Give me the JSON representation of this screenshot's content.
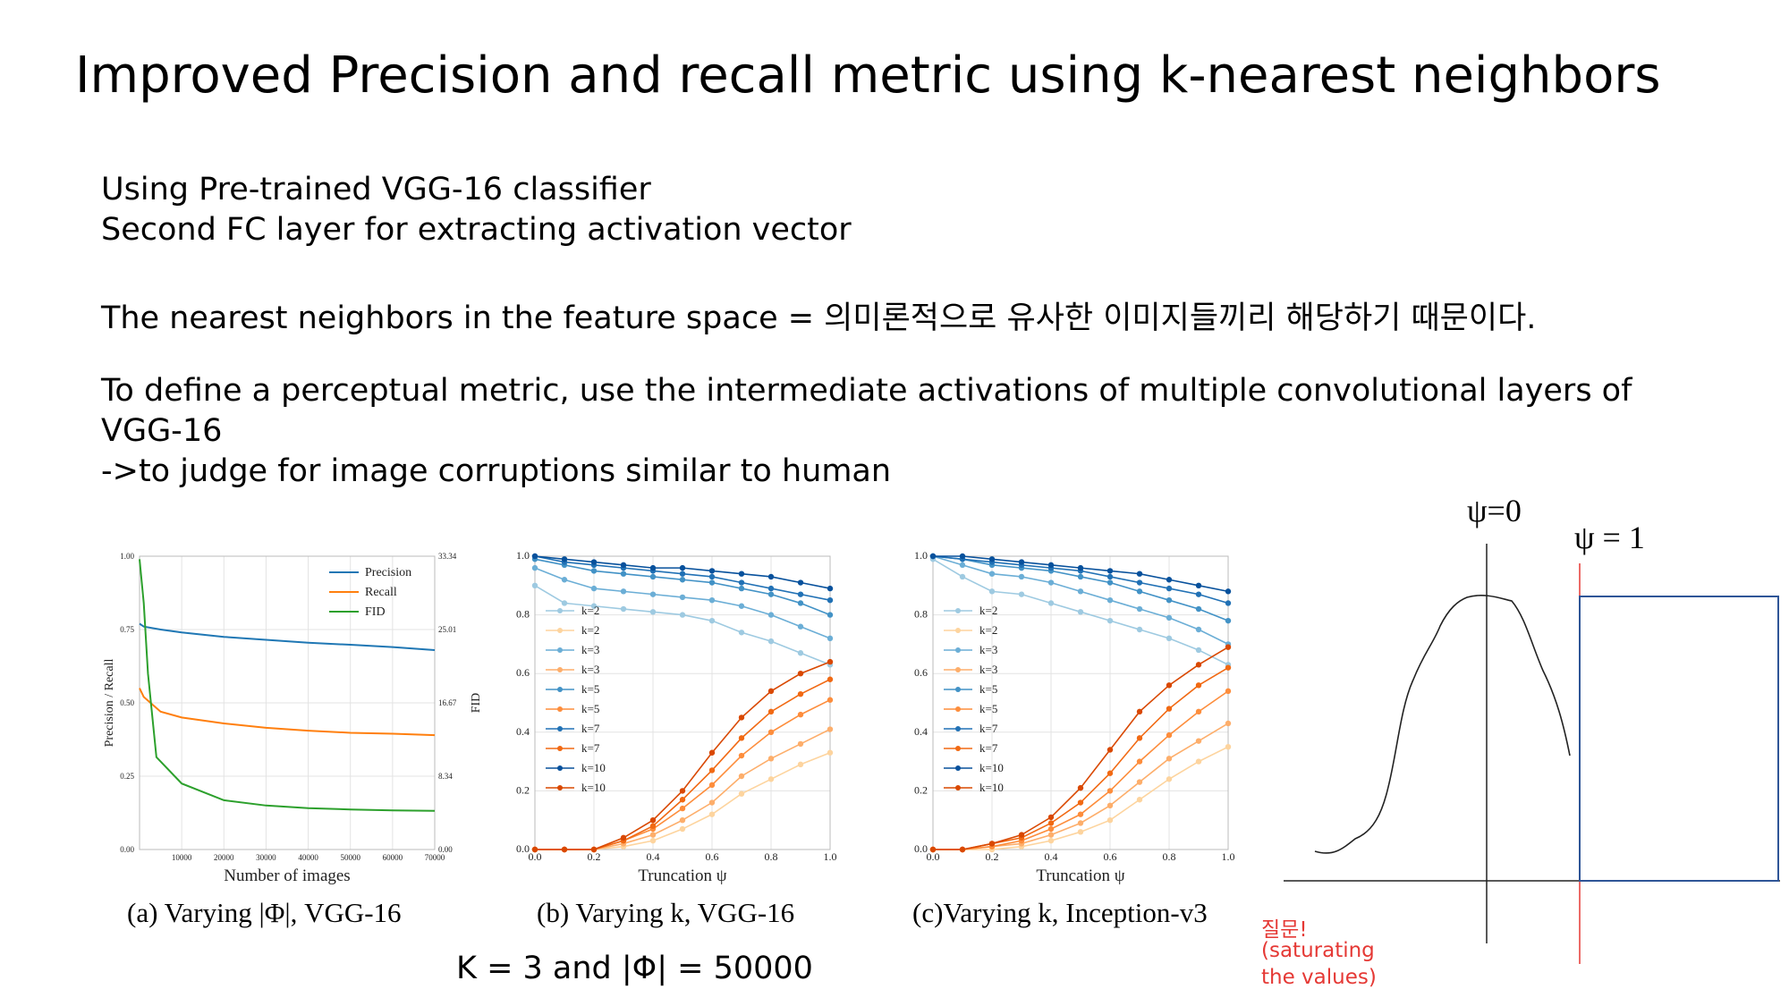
{
  "slide": {
    "title": "Improved Precision and recall metric using k-nearest neighbors",
    "lines": [
      "Using Pre-trained VGG-16 classifier",
      "Second FC layer for extracting activation vector",
      "The nearest neighbors in the feature space = 의미론적으로 유사한 이미지들끼리 해당하기 때문이다.",
      "To define a perceptual metric, use the intermediate activations of multiple convolutional layers of",
      "VGG-16",
      "->to judge for image corruptions similar to human"
    ],
    "note": "K = 3 and |Φ| = 50000",
    "question": [
      "질문!",
      "(saturating",
      "the values)"
    ],
    "psi_zero": "ψ=0",
    "psi_one": "ψ = 1"
  },
  "colors": {
    "precision": "#1f77b4",
    "recall": "#ff7f0e",
    "fid": "#2ca02c",
    "annotation_red": "#e53935",
    "box_blue": "#2f5597"
  },
  "chart_data": [
    {
      "type": "line",
      "caption": "(a) Varying |Φ|, VGG-16",
      "xlabel": "Number of images",
      "ylabel": "Precision / Recall",
      "y2label": "FID",
      "xlim": [
        0,
        70000
      ],
      "ylim": [
        0,
        1.0
      ],
      "y2lim": [
        0,
        33.34
      ],
      "x_ticks": [
        "10000",
        "20000",
        "30000",
        "40000",
        "50000",
        "60000",
        "70000"
      ],
      "y_ticks": [
        "0.00",
        "0.25",
        "0.50",
        "0.75",
        "1.00"
      ],
      "y2_ticks": [
        "0.00",
        "8.34",
        "16.67",
        "25.01",
        "33.34"
      ],
      "legend": [
        "Precision",
        "Recall",
        "FID"
      ],
      "legend_position": "top-right",
      "grid": true,
      "series": [
        {
          "name": "Precision",
          "x": [
            0,
            1000,
            5000,
            10000,
            20000,
            30000,
            40000,
            50000,
            60000,
            70000
          ],
          "y": [
            0.77,
            0.76,
            0.75,
            0.74,
            0.725,
            0.715,
            0.705,
            0.698,
            0.69,
            0.68
          ],
          "axis": "left"
        },
        {
          "name": "Recall",
          "x": [
            0,
            1000,
            5000,
            10000,
            20000,
            30000,
            40000,
            50000,
            60000,
            70000
          ],
          "y": [
            0.55,
            0.52,
            0.47,
            0.45,
            0.43,
            0.415,
            0.405,
            0.398,
            0.395,
            0.39
          ],
          "axis": "left"
        },
        {
          "name": "FID",
          "x": [
            0,
            1000,
            2000,
            4000,
            10000,
            20000,
            30000,
            40000,
            50000,
            60000,
            70000
          ],
          "y": [
            33.0,
            28.0,
            20.0,
            10.5,
            7.5,
            5.6,
            5.0,
            4.7,
            4.55,
            4.45,
            4.4
          ],
          "axis": "right"
        }
      ]
    },
    {
      "type": "line",
      "caption": "(b) Varying k, VGG-16",
      "xlabel": "Truncation ψ",
      "ylabel": "",
      "xlim": [
        0,
        1.0
      ],
      "ylim": [
        0,
        1.0
      ],
      "x_ticks": [
        "0.0",
        "0.2",
        "0.4",
        "0.6",
        "0.8",
        "1.0"
      ],
      "y_ticks": [
        "0.0",
        "0.2",
        "0.4",
        "0.6",
        "0.8",
        "1.0"
      ],
      "legend": [
        "k=2",
        "k=2",
        "k=3",
        "k=3",
        "k=5",
        "k=5",
        "k=7",
        "k=7",
        "k=10",
        "k=10"
      ],
      "legend_position": "center-left",
      "grid": true,
      "x": [
        0,
        0.1,
        0.2,
        0.3,
        0.4,
        0.5,
        0.6,
        0.7,
        0.8,
        0.9,
        1.0
      ],
      "series": [
        {
          "name": "k=2",
          "kind": "precision",
          "color": "#9ecae1",
          "y": [
            0.9,
            0.84,
            0.83,
            0.82,
            0.81,
            0.8,
            0.78,
            0.74,
            0.71,
            0.67,
            0.63
          ]
        },
        {
          "name": "k=2",
          "kind": "recall",
          "color": "#fdd49e",
          "y": [
            0,
            0,
            0,
            0.01,
            0.03,
            0.07,
            0.12,
            0.19,
            0.24,
            0.29,
            0.33
          ]
        },
        {
          "name": "k=3",
          "kind": "precision",
          "color": "#6baed6",
          "y": [
            0.96,
            0.92,
            0.89,
            0.88,
            0.87,
            0.86,
            0.85,
            0.83,
            0.8,
            0.76,
            0.72
          ]
        },
        {
          "name": "k=3",
          "kind": "recall",
          "color": "#fdae6b",
          "y": [
            0,
            0,
            0,
            0.02,
            0.05,
            0.1,
            0.16,
            0.25,
            0.31,
            0.36,
            0.41
          ]
        },
        {
          "name": "k=5",
          "kind": "precision",
          "color": "#4292c6",
          "y": [
            0.99,
            0.97,
            0.95,
            0.94,
            0.93,
            0.92,
            0.91,
            0.89,
            0.87,
            0.84,
            0.8
          ]
        },
        {
          "name": "k=5",
          "kind": "recall",
          "color": "#fd8d3c",
          "y": [
            0,
            0,
            0,
            0.03,
            0.07,
            0.14,
            0.22,
            0.32,
            0.4,
            0.46,
            0.51
          ]
        },
        {
          "name": "k=7",
          "kind": "precision",
          "color": "#2171b5",
          "y": [
            1.0,
            0.98,
            0.97,
            0.96,
            0.95,
            0.94,
            0.93,
            0.91,
            0.89,
            0.87,
            0.85
          ]
        },
        {
          "name": "k=7",
          "kind": "recall",
          "color": "#f16913",
          "y": [
            0,
            0,
            0,
            0.03,
            0.08,
            0.17,
            0.27,
            0.38,
            0.47,
            0.53,
            0.58
          ]
        },
        {
          "name": "k=10",
          "kind": "precision",
          "color": "#08519c",
          "y": [
            1.0,
            0.99,
            0.98,
            0.97,
            0.96,
            0.96,
            0.95,
            0.94,
            0.93,
            0.91,
            0.89
          ]
        },
        {
          "name": "k=10",
          "kind": "recall",
          "color": "#d94801",
          "y": [
            0,
            0,
            0,
            0.04,
            0.1,
            0.2,
            0.33,
            0.45,
            0.54,
            0.6,
            0.64
          ]
        }
      ]
    },
    {
      "type": "line",
      "caption": "(c)Varying k, Inception-v3",
      "xlabel": "Truncation ψ",
      "ylabel": "",
      "xlim": [
        0,
        1.0
      ],
      "ylim": [
        0,
        1.0
      ],
      "x_ticks": [
        "0.0",
        "0.2",
        "0.4",
        "0.6",
        "0.8",
        "1.0"
      ],
      "y_ticks": [
        "0.0",
        "0.2",
        "0.4",
        "0.6",
        "0.8",
        "1.0"
      ],
      "legend": [
        "k=2",
        "k=2",
        "k=3",
        "k=3",
        "k=5",
        "k=5",
        "k=7",
        "k=7",
        "k=10",
        "k=10"
      ],
      "legend_position": "center-left",
      "grid": true,
      "x": [
        0,
        0.1,
        0.2,
        0.3,
        0.4,
        0.5,
        0.6,
        0.7,
        0.8,
        0.9,
        1.0
      ],
      "series": [
        {
          "name": "k=2",
          "kind": "precision",
          "color": "#9ecae1",
          "y": [
            0.99,
            0.93,
            0.88,
            0.87,
            0.84,
            0.81,
            0.78,
            0.75,
            0.72,
            0.68,
            0.63
          ]
        },
        {
          "name": "k=2",
          "kind": "recall",
          "color": "#fdd49e",
          "y": [
            0,
            0,
            0,
            0.01,
            0.03,
            0.06,
            0.1,
            0.17,
            0.24,
            0.3,
            0.35
          ]
        },
        {
          "name": "k=3",
          "kind": "precision",
          "color": "#6baed6",
          "y": [
            1.0,
            0.97,
            0.94,
            0.93,
            0.91,
            0.88,
            0.85,
            0.82,
            0.79,
            0.75,
            0.7
          ]
        },
        {
          "name": "k=3",
          "kind": "recall",
          "color": "#fdae6b",
          "y": [
            0,
            0,
            0.01,
            0.02,
            0.05,
            0.09,
            0.15,
            0.23,
            0.31,
            0.37,
            0.43
          ]
        },
        {
          "name": "k=5",
          "kind": "precision",
          "color": "#4292c6",
          "y": [
            1.0,
            0.99,
            0.97,
            0.96,
            0.95,
            0.93,
            0.91,
            0.88,
            0.85,
            0.82,
            0.78
          ]
        },
        {
          "name": "k=5",
          "kind": "recall",
          "color": "#fd8d3c",
          "y": [
            0,
            0,
            0.01,
            0.03,
            0.07,
            0.12,
            0.2,
            0.3,
            0.39,
            0.47,
            0.54
          ]
        },
        {
          "name": "k=7",
          "kind": "precision",
          "color": "#2171b5",
          "y": [
            1.0,
            0.99,
            0.98,
            0.97,
            0.96,
            0.95,
            0.93,
            0.91,
            0.89,
            0.87,
            0.84
          ]
        },
        {
          "name": "k=7",
          "kind": "recall",
          "color": "#f16913",
          "y": [
            0,
            0,
            0.02,
            0.04,
            0.09,
            0.16,
            0.26,
            0.38,
            0.48,
            0.56,
            0.62
          ]
        },
        {
          "name": "k=10",
          "kind": "precision",
          "color": "#08519c",
          "y": [
            1.0,
            1.0,
            0.99,
            0.98,
            0.97,
            0.96,
            0.95,
            0.94,
            0.92,
            0.9,
            0.88
          ]
        },
        {
          "name": "k=10",
          "kind": "recall",
          "color": "#d94801",
          "y": [
            0,
            0,
            0.02,
            0.05,
            0.11,
            0.21,
            0.34,
            0.47,
            0.56,
            0.63,
            0.69
          ]
        }
      ]
    }
  ]
}
